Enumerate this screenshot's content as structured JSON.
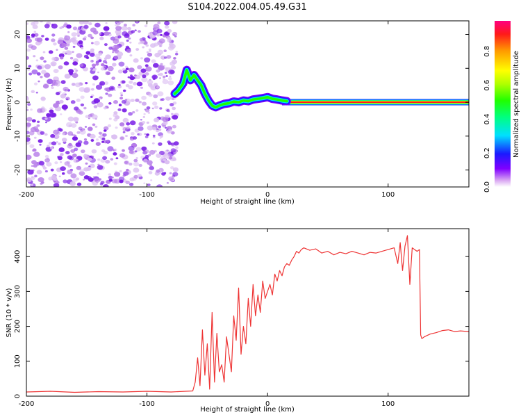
{
  "title": "S104.2022.004.05.49.G31",
  "colors": {
    "snr_line": "#ee3333",
    "frame": "#000000",
    "dots": "#9a4ee0"
  },
  "chart_data": [
    {
      "type": "heatmap",
      "xlabel": "Height of straight line (km)",
      "ylabel": "Frequency (Hz)",
      "xlim": [
        -200,
        167
      ],
      "ylim": [
        -25,
        24
      ],
      "xticks": [
        "-200",
        "-100",
        "0",
        "100"
      ],
      "xtick_values": [
        -200,
        -100,
        0,
        100
      ],
      "yticks": [
        "-20",
        "-10",
        "0",
        "10",
        "20"
      ],
      "ytick_values": [
        -20,
        -10,
        0,
        10,
        20
      ],
      "noise_region_x": [
        -200,
        -75
      ],
      "ridge": {
        "x": [
          -77,
          -74,
          -70,
          -67,
          -64,
          -61,
          -58,
          -55,
          -52,
          -49,
          -46,
          -43,
          -40,
          -36,
          -32,
          -28,
          -24,
          -20,
          -16,
          -12,
          -8,
          -4,
          0,
          4,
          8,
          12,
          16
        ],
        "y": [
          2.5,
          3.5,
          5.5,
          9.5,
          6.5,
          8.0,
          6.5,
          5.0,
          2.5,
          0.5,
          -1.0,
          -1.5,
          -1.0,
          -0.5,
          -0.3,
          0.2,
          0.0,
          0.5,
          0.3,
          0.8,
          1.0,
          1.2,
          1.5,
          1.0,
          0.8,
          0.5,
          0.3
        ]
      },
      "constant_line": {
        "x_start": 12,
        "x_end": 167,
        "y": 0
      },
      "colorbar": {
        "label": "Normalized spectral amplitude",
        "ticks": [
          "0.0",
          "0.2",
          "0.4",
          "0.6",
          "0.8"
        ],
        "tick_values": [
          0.0,
          0.2,
          0.4,
          0.6,
          0.8
        ],
        "range": [
          0,
          0.98
        ]
      }
    },
    {
      "type": "line",
      "xlabel": "Height of straight line (km)",
      "ylabel": "SNR (10 * v/v)",
      "xlim": [
        -200,
        167
      ],
      "ylim": [
        0,
        480
      ],
      "xticks": [
        "-200",
        "-100",
        "0",
        "100"
      ],
      "xtick_values": [
        -200,
        -100,
        0,
        100
      ],
      "yticks": [
        "0",
        "100",
        "200",
        "300",
        "400"
      ],
      "ytick_values": [
        0,
        100,
        200,
        300,
        400
      ],
      "series": [
        {
          "x": [
            -200,
            -180,
            -160,
            -140,
            -120,
            -100,
            -80,
            -62,
            -60,
            -58,
            -56,
            -54,
            -52,
            -50,
            -48,
            -46,
            -44,
            -42,
            -40,
            -38,
            -36,
            -34,
            -32,
            -30,
            -28,
            -26,
            -24,
            -22,
            -20,
            -18,
            -16,
            -14,
            -12,
            -10,
            -8,
            -6,
            -4,
            -2,
            0,
            2,
            4,
            6,
            8,
            10,
            12,
            14,
            16,
            18,
            20,
            22,
            24,
            26,
            28,
            30,
            35,
            40,
            45,
            50,
            55,
            60,
            65,
            70,
            75,
            80,
            85,
            90,
            95,
            100,
            105,
            108,
            110,
            112,
            114,
            116,
            118,
            120,
            122,
            124,
            126,
            127,
            128,
            130,
            135,
            140,
            145,
            150,
            155,
            160,
            167
          ],
          "y": [
            12,
            14,
            11,
            13,
            12,
            14,
            12,
            15,
            40,
            110,
            30,
            190,
            60,
            150,
            20,
            240,
            40,
            180,
            70,
            90,
            40,
            170,
            120,
            70,
            230,
            160,
            310,
            120,
            200,
            150,
            280,
            200,
            320,
            230,
            290,
            240,
            330,
            280,
            300,
            320,
            290,
            350,
            330,
            360,
            345,
            370,
            380,
            375,
            390,
            400,
            415,
            410,
            420,
            425,
            418,
            422,
            410,
            415,
            405,
            412,
            408,
            415,
            410,
            405,
            412,
            410,
            415,
            420,
            425,
            380,
            440,
            360,
            430,
            460,
            320,
            425,
            420,
            415,
            420,
            175,
            165,
            170,
            178,
            182,
            188,
            190,
            185,
            187,
            185
          ]
        }
      ]
    }
  ]
}
